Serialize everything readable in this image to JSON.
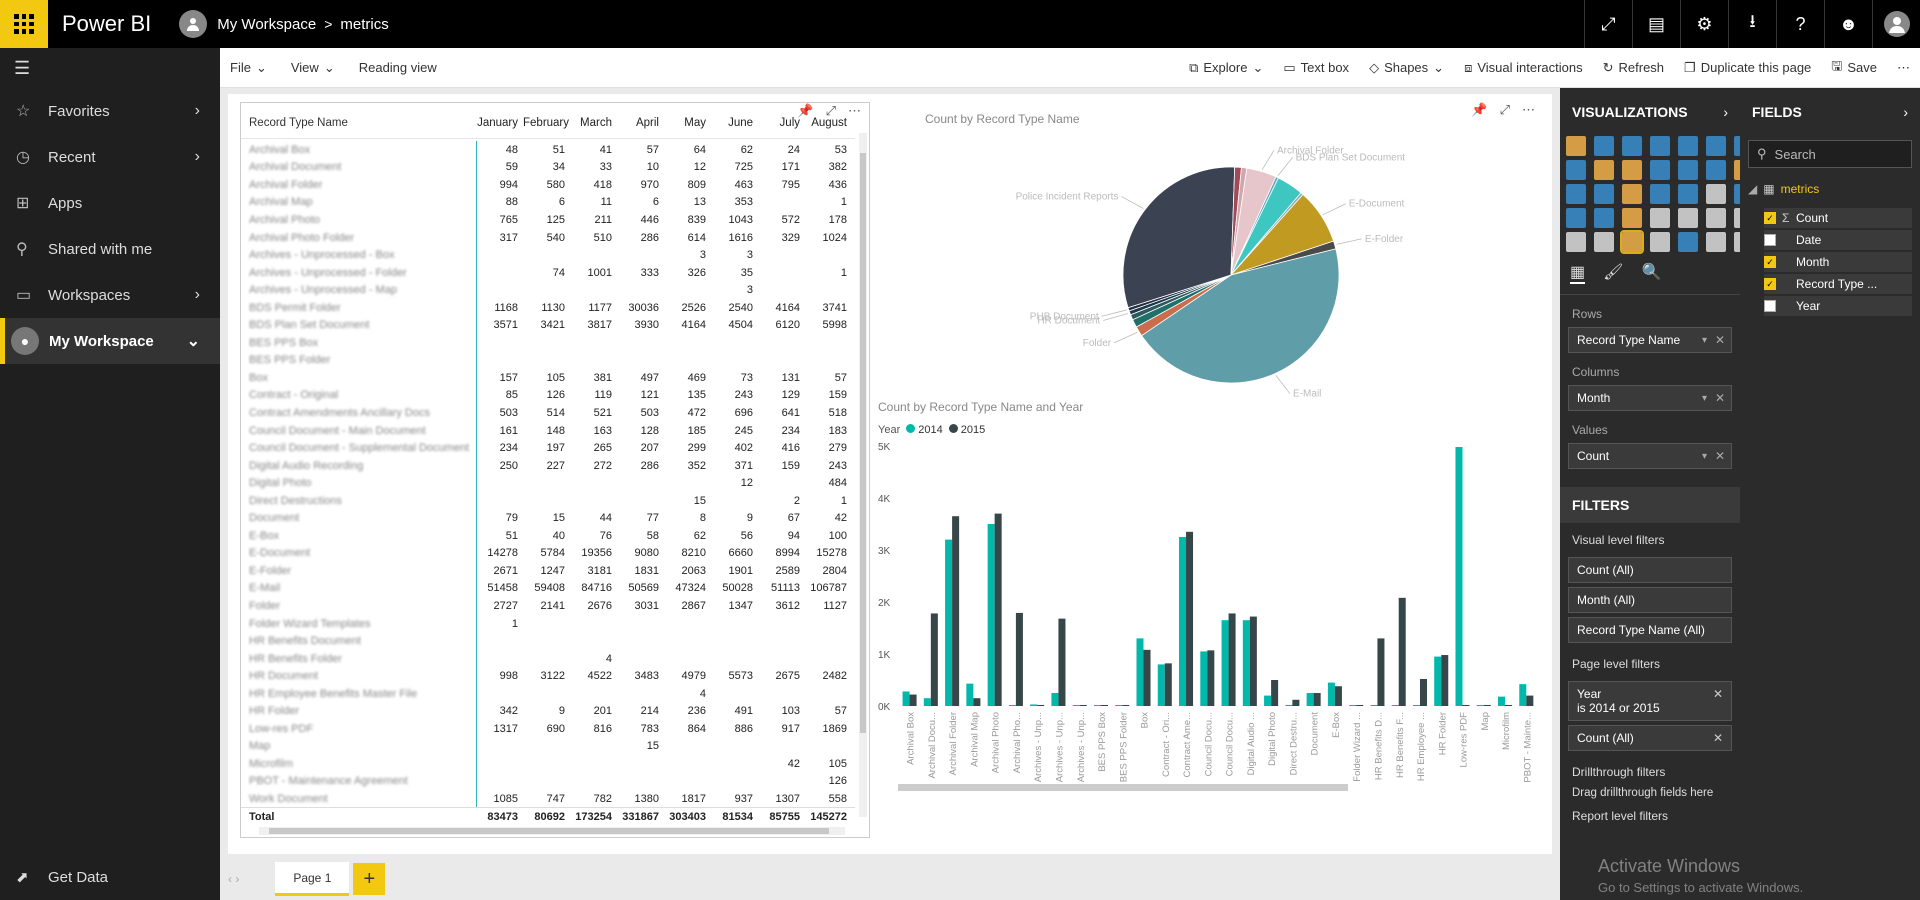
{
  "topbar": {
    "brand": "Power BI",
    "crumb_workspace": "My Workspace",
    "crumb_sep": ">",
    "crumb_dataset": "metrics"
  },
  "leftnav": {
    "items": [
      {
        "label": "Favorites"
      },
      {
        "label": "Recent"
      },
      {
        "label": "Apps"
      },
      {
        "label": "Shared with me"
      },
      {
        "label": "Workspaces"
      },
      {
        "label": "My Workspace"
      }
    ],
    "get_data": "Get Data"
  },
  "toolbar": {
    "file": "File",
    "view": "View",
    "reading_view": "Reading view",
    "explore": "Explore",
    "text_box": "Text box",
    "shapes": "Shapes",
    "visual_interactions": "Visual interactions",
    "refresh": "Refresh",
    "duplicate": "Duplicate this page",
    "save": "Save"
  },
  "matrix": {
    "header": [
      "Record Type Name",
      "January",
      "February",
      "March",
      "April",
      "May",
      "June",
      "July",
      "August"
    ],
    "rows": [
      [
        "Archival Box",
        "48",
        "51",
        "41",
        "57",
        "64",
        "62",
        "24",
        "53"
      ],
      [
        "Archival Document",
        "59",
        "34",
        "33",
        "10",
        "12",
        "725",
        "171",
        "382"
      ],
      [
        "Archival Folder",
        "994",
        "580",
        "418",
        "970",
        "809",
        "463",
        "795",
        "436"
      ],
      [
        "Archival Map",
        "88",
        "6",
        "11",
        "6",
        "13",
        "353",
        "",
        "1"
      ],
      [
        "Archival Photo",
        "765",
        "125",
        "211",
        "446",
        "839",
        "1043",
        "572",
        "178"
      ],
      [
        "Archival Photo Folder",
        "317",
        "540",
        "510",
        "286",
        "614",
        "1616",
        "329",
        "1024"
      ],
      [
        "Archives - Unprocessed - Box",
        "",
        "",
        "",
        "",
        "3",
        "3",
        "",
        ""
      ],
      [
        "Archives - Unprocessed - Folder",
        "",
        "74",
        "1001",
        "333",
        "326",
        "35",
        "",
        "1"
      ],
      [
        "Archives - Unprocessed - Map",
        "",
        "",
        "",
        "",
        "",
        "3",
        "",
        ""
      ],
      [
        "BDS Permit Folder",
        "1168",
        "1130",
        "1177",
        "30036",
        "2526",
        "2540",
        "4164",
        "3741"
      ],
      [
        "BDS Plan Set Document",
        "3571",
        "3421",
        "3817",
        "3930",
        "4164",
        "4504",
        "6120",
        "5998"
      ],
      [
        "BES PPS Box",
        "",
        "",
        "",
        "",
        "",
        "",
        "",
        ""
      ],
      [
        "BES PPS Folder",
        "",
        "",
        "",
        "",
        "",
        "",
        "",
        ""
      ],
      [
        "Box",
        "157",
        "105",
        "381",
        "497",
        "469",
        "73",
        "131",
        "57"
      ],
      [
        "Contract - Original",
        "85",
        "126",
        "119",
        "121",
        "135",
        "243",
        "129",
        "159"
      ],
      [
        "Contract Amendments Ancillary Docs",
        "503",
        "514",
        "521",
        "503",
        "472",
        "696",
        "641",
        "518"
      ],
      [
        "Council Document - Main Document",
        "161",
        "148",
        "163",
        "128",
        "185",
        "245",
        "234",
        "183"
      ],
      [
        "Council Document - Supplemental Document",
        "234",
        "197",
        "265",
        "207",
        "299",
        "402",
        "416",
        "279"
      ],
      [
        "Digital Audio Recording",
        "250",
        "227",
        "272",
        "286",
        "352",
        "371",
        "159",
        "243"
      ],
      [
        "Digital Photo",
        "",
        "",
        "",
        "",
        "",
        "12",
        "",
        "484"
      ],
      [
        "Direct Destructions",
        "",
        "",
        "",
        "",
        "15",
        "",
        "2",
        "1"
      ],
      [
        "Document",
        "79",
        "15",
        "44",
        "77",
        "8",
        "9",
        "67",
        "42"
      ],
      [
        "E-Box",
        "51",
        "40",
        "76",
        "58",
        "62",
        "56",
        "94",
        "100"
      ],
      [
        "E-Document",
        "14278",
        "5784",
        "19356",
        "9080",
        "8210",
        "6660",
        "8994",
        "15278"
      ],
      [
        "E-Folder",
        "2671",
        "1247",
        "3181",
        "1831",
        "2063",
        "1901",
        "2589",
        "2804"
      ],
      [
        "E-Mail",
        "51458",
        "59408",
        "84716",
        "50569",
        "47324",
        "50028",
        "51113",
        "106787"
      ],
      [
        "Folder",
        "2727",
        "2141",
        "2676",
        "3031",
        "2867",
        "1347",
        "3612",
        "1127"
      ],
      [
        "Folder Wizard Templates",
        "1",
        "",
        "",
        "",
        "",
        "",
        "",
        ""
      ],
      [
        "HR Benefits Document",
        "",
        "",
        "",
        "",
        "",
        "",
        "",
        ""
      ],
      [
        "HR Benefits Folder",
        "",
        "",
        "4",
        "",
        "",
        "",
        "",
        ""
      ],
      [
        "HR Document",
        "998",
        "3122",
        "4522",
        "3483",
        "4979",
        "5573",
        "2675",
        "2482"
      ],
      [
        "HR Employee Benefits Master File",
        "",
        "",
        "",
        "",
        "4",
        "",
        "",
        ""
      ],
      [
        "HR Folder",
        "342",
        "9",
        "201",
        "214",
        "236",
        "491",
        "103",
        "57"
      ],
      [
        "Low-res PDF",
        "1317",
        "690",
        "816",
        "783",
        "864",
        "886",
        "917",
        "1869"
      ],
      [
        "Map",
        "",
        "",
        "",
        "15",
        "",
        "",
        "",
        ""
      ],
      [
        "Microfilm",
        "",
        "",
        "",
        "",
        "",
        "",
        "42",
        "105"
      ],
      [
        "PBOT - Maintenance Agreement",
        "",
        "",
        "",
        "",
        "",
        "",
        "",
        "126"
      ],
      [
        "Work Document",
        "1085",
        "747",
        "782",
        "1380",
        "1817",
        "937",
        "1307",
        "558"
      ]
    ],
    "total": [
      "Total",
      "83473",
      "80692",
      "173254",
      "331867",
      "303403",
      "81534",
      "85755",
      "145272"
    ]
  },
  "pie": {
    "title": "Count by Record Type Name",
    "labels": [
      "Archival Folder",
      "BDS Plan Set Document",
      "E-Document",
      "E-Folder",
      "E-Mail",
      "Folder",
      "HR Document",
      "PHB Document",
      "Police Incident Reports"
    ]
  },
  "bar": {
    "title": "Count by Record Type Name and Year",
    "legend_title": "Year",
    "series_names": [
      "2014",
      "2015"
    ],
    "colors": [
      "#01b8aa",
      "#374649"
    ]
  },
  "chart_data": [
    {
      "type": "pie",
      "title": "Count by Record Type Name",
      "slices": [
        {
          "label": "E-Mail",
          "value": 0.445,
          "color": "#5f9ea8"
        },
        {
          "label": "Folder",
          "value": 0.015,
          "color": "#c96d4e"
        },
        {
          "label": "",
          "value": 0.012,
          "color": "#1f6f6a"
        },
        {
          "label": "",
          "value": 0.008,
          "color": "#2e5a5e"
        },
        {
          "label": "HR Document",
          "value": 0.006,
          "color": "#1e3b4d"
        },
        {
          "label": "PHB Document",
          "value": 0.005,
          "color": "#233040"
        },
        {
          "label": "Police Incident Reports",
          "value": 0.305,
          "color": "#3b4252"
        },
        {
          "label": "",
          "value": 0.01,
          "color": "#a04a58"
        },
        {
          "label": "",
          "value": 0.008,
          "color": "#d1a7ae"
        },
        {
          "label": "Archival Folder",
          "value": 0.045,
          "color": "#e6c6ca"
        },
        {
          "label": "BDS Plan Set Document",
          "value": 0.004,
          "color": "#5aa9c4"
        },
        {
          "label": "",
          "value": 0.04,
          "color": "#3ec7c0"
        },
        {
          "label": "",
          "value": 0.004,
          "color": "#8ab0b8"
        },
        {
          "label": "E-Document",
          "value": 0.083,
          "color": "#c19a22"
        },
        {
          "label": "E-Folder",
          "value": 0.012,
          "color": "#4a4a4a"
        }
      ]
    },
    {
      "type": "bar",
      "title": "Count by Record Type Name and Year",
      "ylim": [
        0,
        5000
      ],
      "yticks": [
        "5K",
        "4K",
        "3K",
        "2K",
        "1K",
        "0K"
      ],
      "categories": [
        "Archival Box",
        "Archival Docu...",
        "Archival Folder",
        "Archival Map",
        "Archival Photo",
        "Archival Pho...",
        "Archives - Unp...",
        "Archives - Unp...",
        "Archives - Unp...",
        "BES PPS Box",
        "BES PPS Folder",
        "Box",
        "Contract - Ori...",
        "Contract Ame...",
        "Council Docu...",
        "Council Docu...",
        "Digital Audio ...",
        "Digital Photo",
        "Direct Destru...",
        "Document",
        "E-Box",
        "Folder Wizard ...",
        "HR Benefits D...",
        "HR Benefits F...",
        "HR Employee ...",
        "HR Folder",
        "Low-res PDF",
        "Map",
        "Microfilm",
        "PBOT - Mainte..."
      ],
      "series": [
        {
          "name": "2014",
          "values": [
            280,
            150,
            3200,
            430,
            3500,
            20,
            30,
            250,
            10,
            10,
            10,
            1300,
            800,
            3250,
            1050,
            1650,
            1650,
            200,
            20,
            250,
            450,
            10,
            10,
            10,
            10,
            950,
            4980,
            10,
            180,
            420
          ]
        },
        {
          "name": "2015",
          "values": [
            220,
            1780,
            3650,
            150,
            3700,
            1790,
            20,
            1680,
            10,
            10,
            10,
            1080,
            820,
            3350,
            1070,
            1780,
            1720,
            500,
            120,
            250,
            380,
            10,
            1300,
            2080,
            520,
            980,
            10,
            20,
            10,
            200
          ]
        }
      ]
    }
  ],
  "viz_pane": {
    "title": "VISUALIZATIONS",
    "rows_label": "Rows",
    "rows_value": "Record Type Name",
    "columns_label": "Columns",
    "columns_value": "Month",
    "values_label": "Values",
    "values_value": "Count",
    "filters_title": "FILTERS",
    "visual_filters": "Visual level filters",
    "vf": [
      "Count (All)",
      "Month (All)",
      "Record Type Name  (All)"
    ],
    "page_filters": "Page level filters",
    "pf_year": "Year",
    "pf_year_val": "is 2014 or 2015",
    "pf_count": "Count (All)",
    "drill": "Drillthrough filters",
    "drill_hint": "Drag drillthrough fields here",
    "report_filters": "Report level filters"
  },
  "fields_pane": {
    "title": "FIELDS",
    "search_placeholder": "Search",
    "table": "metrics",
    "fields": [
      {
        "name": "Count",
        "checked": true
      },
      {
        "name": "Date",
        "checked": false
      },
      {
        "name": "Month",
        "checked": true
      },
      {
        "name": "Record Type ...",
        "checked": true
      },
      {
        "name": "Year",
        "checked": false
      }
    ]
  },
  "pagetab": {
    "label": "Page 1"
  },
  "watermark": {
    "line1": "Activate Windows",
    "line2": "Go to Settings to activate Windows."
  }
}
